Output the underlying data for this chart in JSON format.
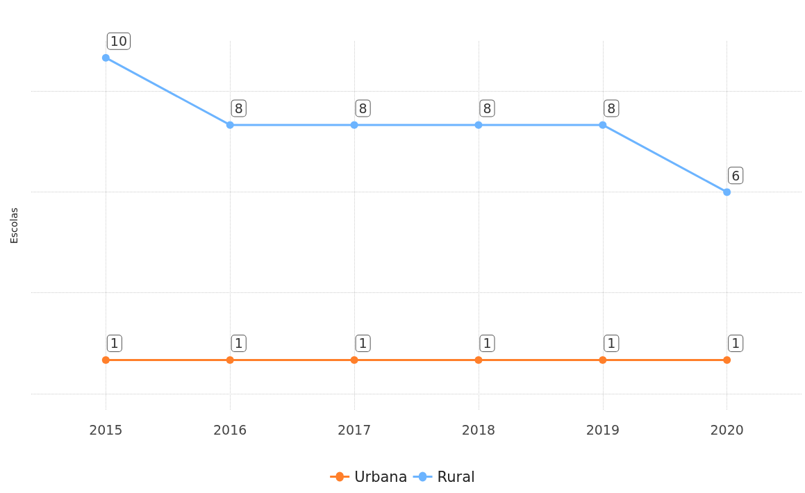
{
  "chart_data": {
    "type": "line",
    "ylabel": "Escolas",
    "x": [
      2015,
      2016,
      2017,
      2018,
      2019,
      2020
    ],
    "xlim": [
      2014.4,
      2020.6
    ],
    "xticks": [
      2015,
      2016,
      2017,
      2018,
      2019,
      2020
    ],
    "ylim": [
      -0.5,
      10.5
    ],
    "yticks": [
      {
        "value": 0,
        "label": null
      },
      {
        "value": 3,
        "label": null
      },
      {
        "value": 6,
        "label": null
      },
      {
        "value": 9,
        "label": null
      }
    ],
    "tick_labels": "x",
    "series": [
      {
        "name": "Urbana",
        "color": "#ff7f2a",
        "values": [
          1,
          1,
          1,
          1,
          1,
          1
        ]
      },
      {
        "name": "Rural",
        "color": "#6cb4ff",
        "values": [
          10,
          8,
          8,
          8,
          8,
          6
        ]
      }
    ],
    "marker": "circle",
    "line_style": "solid",
    "grid": true,
    "data_labels": true,
    "legend": "bottom"
  }
}
